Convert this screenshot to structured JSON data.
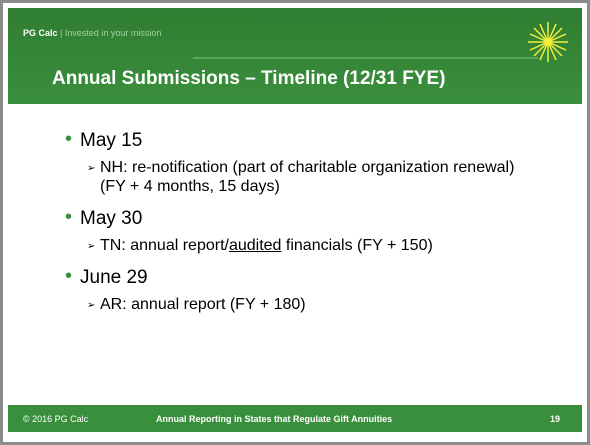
{
  "header": {
    "brand": "PG Calc",
    "separator": "|",
    "tagline": "Invested in your mission"
  },
  "title": "Annual Submissions – Timeline (12/31 FYE)",
  "items": [
    {
      "heading": "May 15",
      "sub": [
        "NH: re-notification (part of charitable organization renewal) (FY + 4 months, 15 days)"
      ]
    },
    {
      "heading": "May 30",
      "sub": [
        "TN: annual report/",
        "audited",
        " financials (FY + 150)"
      ]
    },
    {
      "heading": "June 29",
      "sub": [
        "AR: annual report (FY + 180)"
      ]
    }
  ],
  "footer": {
    "copyright": "© 2016 PG Calc",
    "center": "Annual Reporting in States that Regulate Gift Annuities",
    "page": "19"
  }
}
